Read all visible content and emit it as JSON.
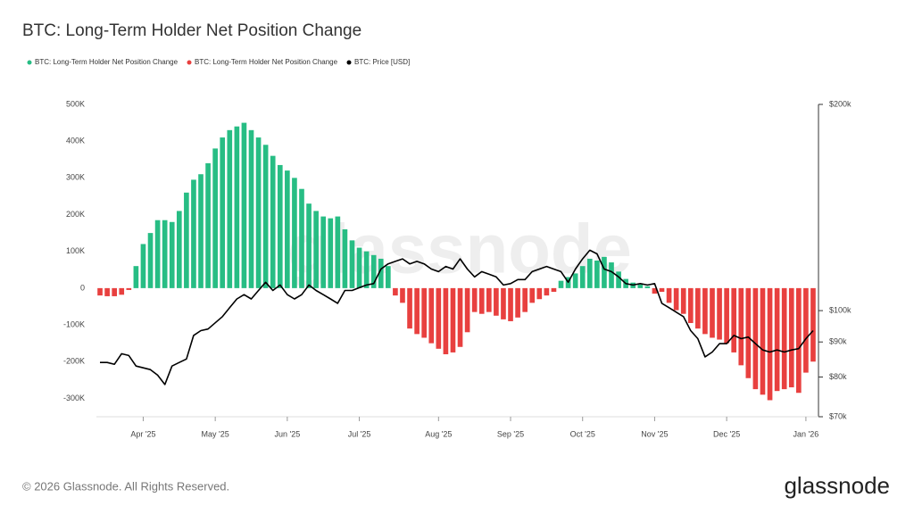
{
  "chart_data": {
    "type": "bar_line",
    "title": "BTC: Long-Term Holder Net Position Change",
    "watermark": "glassnode",
    "footer": "© 2026 Glassnode. All Rights Reserved.",
    "brand": "glassnode",
    "categories": [
      null,
      null,
      null,
      null,
      null,
      null,
      "Apr '25",
      null,
      null,
      null,
      null,
      null,
      null,
      null,
      null,
      null,
      "May '25",
      null,
      null,
      null,
      null,
      null,
      null,
      null,
      null,
      null,
      "Jun '25",
      null,
      null,
      null,
      null,
      null,
      null,
      null,
      null,
      null,
      "Jul '25",
      null,
      null,
      null,
      null,
      null,
      null,
      null,
      null,
      null,
      null,
      "Aug '25",
      null,
      null,
      null,
      null,
      null,
      null,
      null,
      null,
      null,
      "Sep '25",
      null,
      null,
      null,
      null,
      null,
      null,
      null,
      null,
      null,
      "Oct '25",
      null,
      null,
      null,
      null,
      null,
      null,
      null,
      null,
      null,
      "Nov '25",
      null,
      null,
      null,
      null,
      null,
      null,
      null,
      null,
      null,
      "Dec '25",
      null,
      null,
      null,
      null,
      null,
      null,
      null,
      null,
      null,
      null,
      "Jan '26",
      null
    ],
    "series": [
      {
        "name": "BTC: Long-Term Holder Net Position Change",
        "color": "#27bd84",
        "negative_color": "#e8403f",
        "values": [
          -20000,
          -22000,
          -22000,
          -18000,
          -5000,
          60000,
          120000,
          150000,
          185000,
          185000,
          180000,
          210000,
          260000,
          295000,
          310000,
          340000,
          380000,
          410000,
          430000,
          440000,
          450000,
          430000,
          410000,
          390000,
          360000,
          335000,
          320000,
          300000,
          270000,
          230000,
          210000,
          195000,
          190000,
          195000,
          160000,
          130000,
          110000,
          100000,
          90000,
          80000,
          60000,
          -20000,
          -40000,
          -110000,
          -125000,
          -135000,
          -150000,
          -165000,
          -180000,
          -175000,
          -160000,
          -120000,
          -65000,
          -70000,
          -65000,
          -75000,
          -85000,
          -90000,
          -80000,
          -65000,
          -40000,
          -30000,
          -20000,
          -10000,
          20000,
          30000,
          40000,
          60000,
          80000,
          75000,
          85000,
          70000,
          45000,
          25000,
          15000,
          10000,
          5000,
          -15000,
          -10000,
          -40000,
          -60000,
          -70000,
          -95000,
          -110000,
          -125000,
          -135000,
          -140000,
          -150000,
          -175000,
          -210000,
          -245000,
          -275000,
          -290000,
          -305000,
          -280000,
          -275000,
          -270000,
          -285000,
          -230000,
          -200000
        ]
      },
      {
        "name": "BTC: Price [USD]",
        "color": "#000000",
        "axis": "y2",
        "values": [
          84000,
          84000,
          83500,
          86500,
          86000,
          83000,
          82500,
          82000,
          80500,
          78000,
          83000,
          84000,
          85000,
          92000,
          93500,
          94000,
          96000,
          98000,
          101000,
          104000,
          105500,
          104000,
          107000,
          110000,
          107000,
          109000,
          105500,
          104000,
          105500,
          109000,
          107000,
          105500,
          104000,
          102500,
          107000,
          107000,
          108000,
          109000,
          109500,
          115000,
          117000,
          118000,
          119000,
          117000,
          118000,
          117000,
          115000,
          114000,
          116000,
          115000,
          119000,
          115000,
          112000,
          114000,
          113000,
          112000,
          109000,
          109500,
          111000,
          111000,
          114000,
          115000,
          116000,
          115000,
          114000,
          110000,
          115000,
          119000,
          122500,
          121000,
          115000,
          114000,
          112000,
          109500,
          109000,
          109500,
          109000,
          109500,
          102500,
          101000,
          99500,
          98000,
          93500,
          91000,
          85600,
          87000,
          89500,
          89500,
          92000,
          91000,
          91500,
          89500,
          87600,
          87000,
          87600,
          87000,
          87600,
          88000,
          91000,
          93500
        ]
      }
    ],
    "ylim": [
      -350000,
      500000
    ],
    "yticks": [
      {
        "value": 500000,
        "label": "500K"
      },
      {
        "value": 400000,
        "label": "400K"
      },
      {
        "value": 300000,
        "label": "300K"
      },
      {
        "value": 200000,
        "label": "200K"
      },
      {
        "value": 100000,
        "label": "100K"
      },
      0,
      {
        "value": -100000,
        "label": "-100K"
      },
      {
        "value": -200000,
        "label": "-200K"
      },
      {
        "value": -300000,
        "label": "-300K"
      }
    ],
    "y2lim": [
      70000,
      200000
    ],
    "y2_log": true,
    "y2ticks": [
      {
        "value": 200000,
        "label": "$200k"
      },
      {
        "value": 100000,
        "label": "$100k"
      },
      {
        "value": 90000,
        "label": "$90k"
      },
      {
        "value": 80000,
        "label": "$80k"
      },
      {
        "value": 70000,
        "label": "$70k"
      }
    ]
  }
}
